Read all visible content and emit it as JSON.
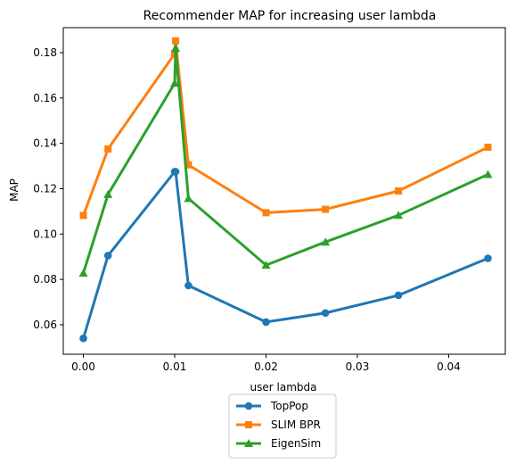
{
  "chart_data": {
    "type": "line",
    "title": "Recommender MAP for increasing user lambda",
    "xlabel": "user lambda",
    "ylabel": "MAP",
    "xlim": [
      -0.0022,
      0.0462
    ],
    "ylim": [
      0.047,
      0.191
    ],
    "xticks": [
      0.0,
      0.01,
      0.02,
      0.03,
      0.04
    ],
    "xtick_labels": [
      "0.00",
      "0.01",
      "0.02",
      "0.03",
      "0.04"
    ],
    "yticks": [
      0.06,
      0.08,
      0.1,
      0.12,
      0.14,
      0.16,
      0.18
    ],
    "ytick_labels": [
      "0.06",
      "0.08",
      "0.10",
      "0.12",
      "0.14",
      "0.16",
      "0.18"
    ],
    "grid": false,
    "legend_position": "below-center",
    "series": [
      {
        "name": "TopPop",
        "color": "#1f77b4",
        "marker": "circle",
        "x": [
          0.0,
          0.0027,
          0.01,
          0.0101,
          0.0115,
          0.02,
          0.0265,
          0.0345,
          0.0443
        ],
        "y": [
          0.054,
          0.0905,
          0.1275,
          0.1275,
          0.0773,
          0.0612,
          0.0652,
          0.073,
          0.0893
        ]
      },
      {
        "name": "SLIM BPR",
        "color": "#ff7f0e",
        "marker": "square",
        "x": [
          0.0,
          0.0027,
          0.01,
          0.0101,
          0.0115,
          0.02,
          0.0265,
          0.0345,
          0.0443
        ],
        "y": [
          0.1082,
          0.1375,
          0.1795,
          0.1852,
          0.1305,
          0.1094,
          0.1109,
          0.119,
          0.1383
        ]
      },
      {
        "name": "EigenSim",
        "color": "#2ca02c",
        "marker": "triangle",
        "x": [
          0.0,
          0.0027,
          0.01,
          0.0101,
          0.0115,
          0.02,
          0.0265,
          0.0345,
          0.0443
        ],
        "y": [
          0.0828,
          0.1175,
          0.1665,
          0.182,
          0.1157,
          0.0863,
          0.0965,
          0.1083,
          0.1263
        ]
      }
    ]
  }
}
